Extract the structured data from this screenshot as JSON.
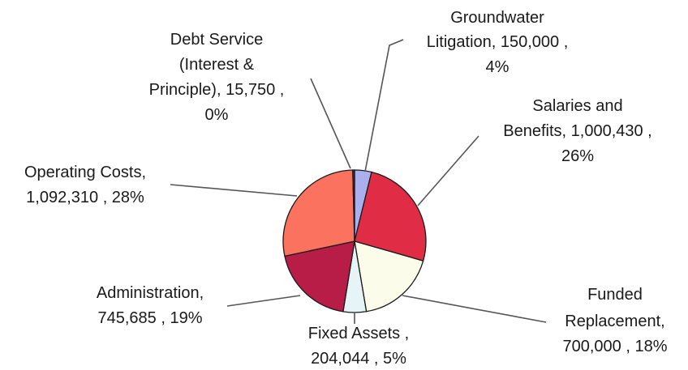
{
  "chart_data": {
    "type": "pie",
    "title": "",
    "slices": [
      {
        "name": "Groundwater Litigation",
        "value": 150000,
        "value_label": "150,000",
        "percent_label": "4%",
        "color": "#aab0ee",
        "label_lines": [
          "Groundwater",
          "Litigation, 150,000 ,",
          "4%"
        ]
      },
      {
        "name": "Salaries and Benefits",
        "value": 1000430,
        "value_label": "1,000,430",
        "percent_label": "26%",
        "color": "#e02d45",
        "label_lines": [
          "Salaries and",
          "Benefits, 1,000,430 ,",
          "26%"
        ]
      },
      {
        "name": "Funded Replacement",
        "value": 700000,
        "value_label": "700,000",
        "percent_label": "18%",
        "color": "#fcfcea",
        "label_lines": [
          "Funded",
          "Replacement,",
          "700,000 , 18%"
        ]
      },
      {
        "name": "Fixed Assets",
        "value": 204044,
        "value_label": "204,044",
        "percent_label": "5%",
        "color": "#e6f4f8",
        "label_lines": [
          "Fixed Assets ,",
          "204,044 , 5%"
        ]
      },
      {
        "name": "Administration",
        "value": 745685,
        "value_label": "745,685",
        "percent_label": "19%",
        "color": "#b81d48",
        "label_lines": [
          "Administration,",
          "745,685 , 19%"
        ]
      },
      {
        "name": "Operating Costs",
        "value": 1092310,
        "value_label": "1,092,310",
        "percent_label": "28%",
        "color": "#fb735e",
        "label_lines": [
          "Operating Costs,",
          "1,092,310 , 28%"
        ]
      },
      {
        "name": "Debt Service (Interest & Principle)",
        "value": 15750,
        "value_label": "15,750",
        "percent_label": "0%",
        "color": "#7a1f2e",
        "label_lines": [
          "Debt Service",
          "(Interest &",
          "Principle), 15,750 ,",
          "0%"
        ]
      }
    ]
  }
}
